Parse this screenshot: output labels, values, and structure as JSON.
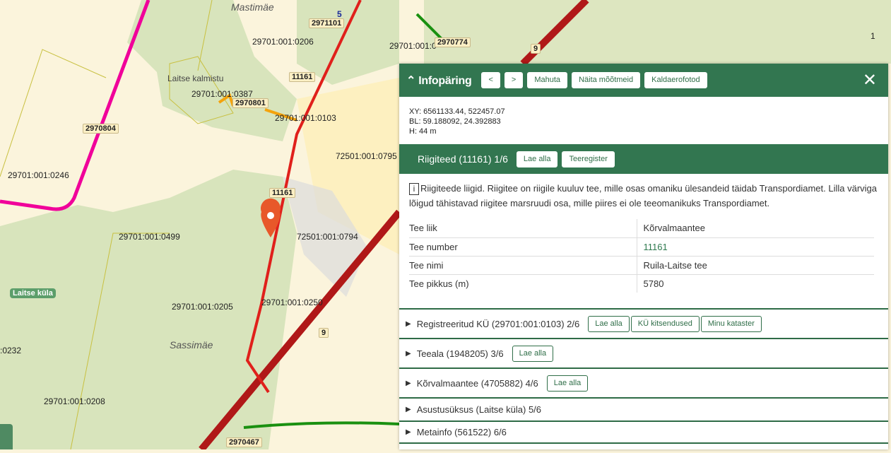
{
  "map": {
    "labels": {
      "mastimae": "Mastimäe",
      "p0206": "29701:001:0206",
      "r2971101": "2971101",
      "r2970774": "2970774",
      "p0c": "29701:001:0",
      "kalmistu": "Laitse kalmistu",
      "p0387": "29701:001:0387",
      "r2970801": "2970801",
      "p0103": "29701:001:0103",
      "r2970804": "2970804",
      "p0246": "29701:001:0246",
      "p0795": "72501:001:0795",
      "r11161a": "11161",
      "r11161b": "11161",
      "p0499": "29701:001:0499",
      "p0794": "72501:001:0794",
      "laitse_kula": "Laitse küla",
      "p0205": "29701:001:0205",
      "p0250": "29701:001:0250",
      "sassimae": "Sassimäe",
      "p0232": ":0232",
      "p0208": "29701:001:0208",
      "r2970467": "2970467",
      "road9a": "9",
      "road9b": "9",
      "road5": "5",
      "road1": "1"
    },
    "colors": {
      "state_road": "#e0201b",
      "local_road": "#f0009a",
      "forest": "#d8e4bc",
      "private_road": "#f4a30c",
      "marker": "#e8582a"
    }
  },
  "panel": {
    "title": "Infopäring",
    "prev": "<",
    "next": ">",
    "fit": "Mahuta",
    "measure": "Näita mõõtmeid",
    "oblique": "Kaldaerofotod",
    "close": "✕",
    "xy": "XY: 6561133.44, 522457.07",
    "bl": "BL: 59.188092, 24.392883",
    "h": "H: 44 m",
    "section": {
      "title": "Riigiteed (11161) 1/6",
      "download": "Lae alla",
      "register": "Teeregister",
      "info_icon": "i",
      "description": "Riigiteede liigid. Riigitee on riigile kuuluv tee, mille osas omaniku ülesandeid täidab Transpordiamet. Lilla värviga lõigud tähistavad riigitee marsruudi osa, mille piires ei ole teeomanikuks Transpordiamet.",
      "rows": [
        {
          "k": "Tee liik",
          "v": "Kõrvalmaantee"
        },
        {
          "k": "Tee number",
          "v": "11161"
        },
        {
          "k": "Tee nimi",
          "v": "Ruila-Laitse tee"
        },
        {
          "k": "Tee pikkus (m)",
          "v": "5780"
        }
      ]
    },
    "collapsed": [
      {
        "label": "Registreeritud KÜ (29701:001:0103) 2/6",
        "buttons": [
          "Lae alla",
          "KÜ kitsendused",
          "Minu kataster"
        ]
      },
      {
        "label": "Teeala (1948205) 3/6",
        "buttons": [
          "Lae alla"
        ]
      },
      {
        "label": "Kõrvalmaantee (4705882) 4/6",
        "buttons": [
          "Lae alla"
        ]
      },
      {
        "label": "Asustusüksus (Laitse küla) 5/6",
        "buttons": []
      },
      {
        "label": "Metainfo (561522) 6/6",
        "buttons": []
      }
    ]
  }
}
